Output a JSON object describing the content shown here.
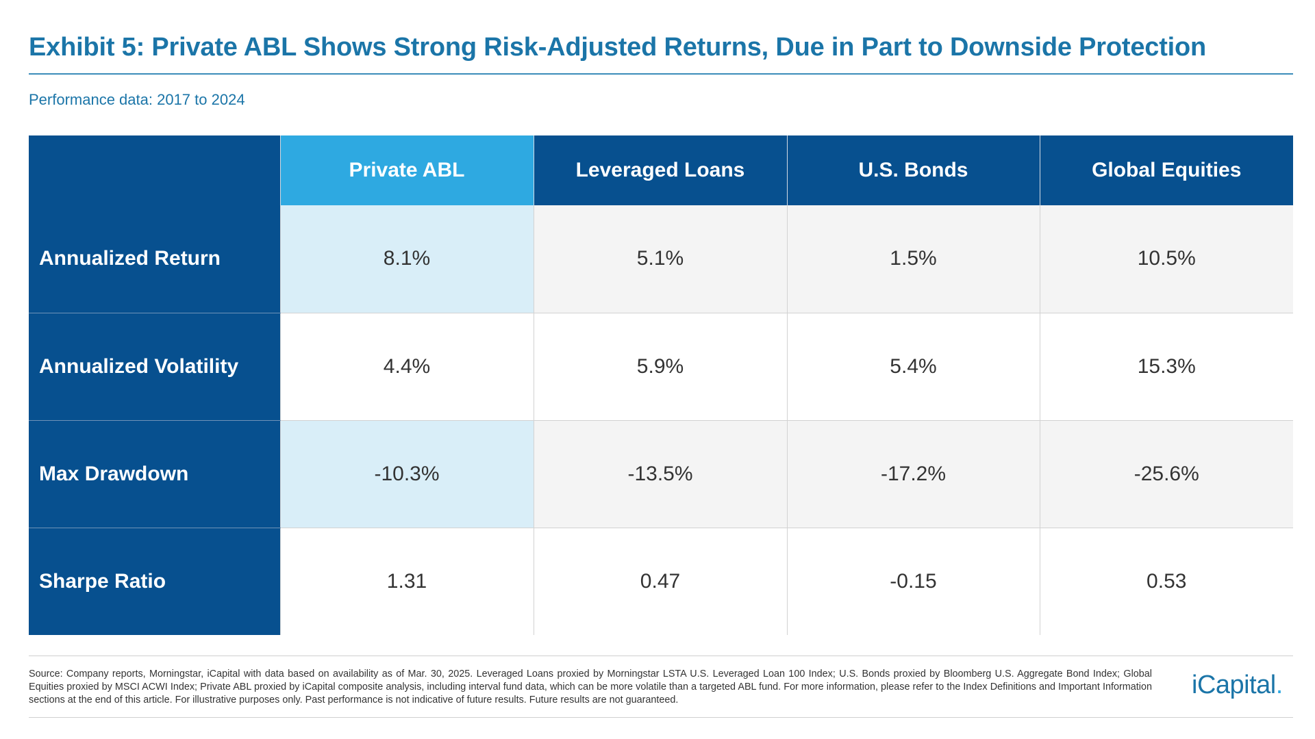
{
  "header": {
    "title": "Exhibit 5: Private ABL Shows Strong Risk-Adjusted Returns, Due in Part to Downside Protection",
    "subtitle": "Performance data: 2017 to 2024"
  },
  "table": {
    "columns": [
      "Private ABL",
      "Leveraged Loans",
      "U.S. Bonds",
      "Global Equities"
    ],
    "rows": [
      {
        "label": "Annualized Return",
        "values": [
          "8.1%",
          "5.1%",
          "1.5%",
          "10.5%"
        ]
      },
      {
        "label": "Annualized Volatility",
        "values": [
          "4.4%",
          "5.9%",
          "5.4%",
          "15.3%"
        ]
      },
      {
        "label": "Max Drawdown",
        "values": [
          "-10.3%",
          "-13.5%",
          "-17.2%",
          "-25.6%"
        ]
      },
      {
        "label": "Sharpe Ratio",
        "values": [
          "1.31",
          "0.47",
          "-0.15",
          "0.53"
        ]
      }
    ]
  },
  "footer": {
    "source": "Source: Company reports, Morningstar, iCapital with data based on availability as of Mar. 30, 2025. Leveraged Loans proxied by Morningstar LSTA U.S. Leveraged Loan 100 Index; U.S. Bonds proxied by Bloomberg U.S. Aggregate Bond Index; Global Equities proxied by MSCI ACWI Index; Private ABL proxied by iCapital composite analysis, including interval fund data, which can be more volatile than a targeted ABL fund. For more information, please refer to the Index Definitions and Important Information sections at the end of this article. For illustrative purposes only. Past performance is not indicative of future results. Future results are not guaranteed.",
    "logo_text": "iCapital",
    "logo_dot": "."
  },
  "colors": {
    "brand_blue": "#1b75a8",
    "navy": "#07508f",
    "highlight": "#2ea9e1",
    "highlight_light": "#d9eef8"
  }
}
